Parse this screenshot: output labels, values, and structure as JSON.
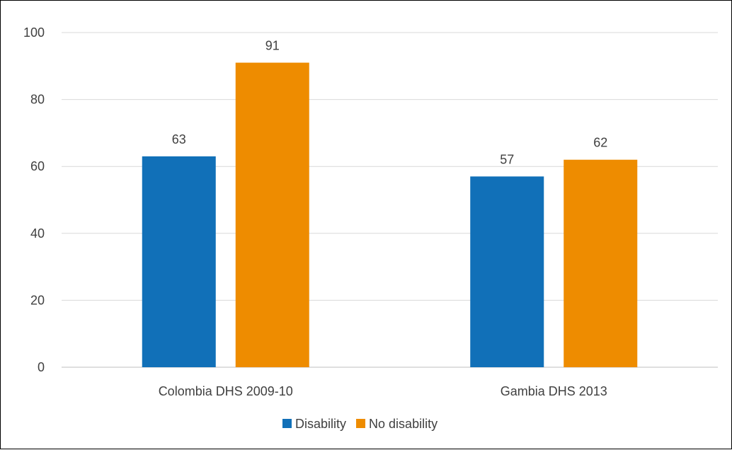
{
  "chart_data": {
    "type": "bar",
    "categories": [
      "Colombia DHS 2009-10",
      "Gambia DHS 2013"
    ],
    "series": [
      {
        "name": "Disability",
        "values": [
          63,
          57
        ],
        "labels": [
          "63",
          "57"
        ],
        "color": "#1170B8"
      },
      {
        "name": "No disability",
        "values": [
          91,
          62
        ],
        "labels": [
          "91",
          "62"
        ],
        "color": "#EE8C00"
      }
    ],
    "title": "",
    "xlabel": "",
    "ylabel": "",
    "ylim": [
      0,
      100
    ],
    "yticks": [
      0,
      20,
      40,
      60,
      80,
      100
    ],
    "grid": true,
    "gridColor": "#d9d9d9",
    "legend": "bottom-center"
  }
}
